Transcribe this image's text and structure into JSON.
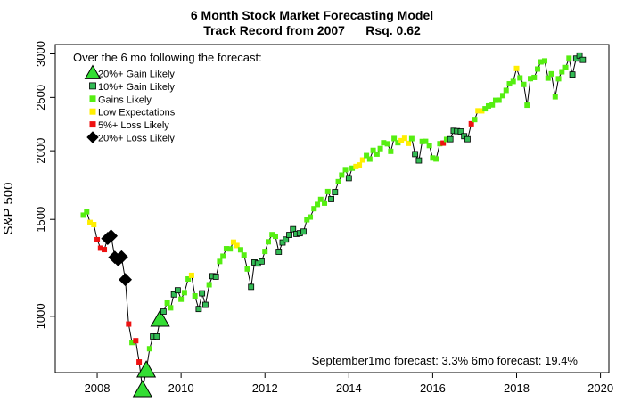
{
  "chart_data": {
    "type": "scatter",
    "title": "6 Month Stock Market Forecasting Model",
    "subtitle": "Track Record from 2007      Rsq. 0.62",
    "ylabel": "S&P 500",
    "xlabel": "",
    "x_range": [
      2007.0,
      2020.2
    ],
    "y_range": [
      790,
      3120
    ],
    "y_scale": "log",
    "x_ticks": [
      2008,
      2010,
      2012,
      2014,
      2016,
      2018,
      2020
    ],
    "y_ticks": [
      1000,
      1500,
      2000,
      2500,
      3000
    ],
    "legend": {
      "title": "Over the 6 mo following the forecast:",
      "entries": [
        {
          "category": "gain20",
          "label": "20%+ Gain Likely"
        },
        {
          "category": "gain10",
          "label": "10%+ Gain Likely"
        },
        {
          "category": "gains",
          "label": "Gains Likely"
        },
        {
          "category": "low",
          "label": "Low Expectations"
        },
        {
          "category": "loss5",
          "label": "5%+  Loss Likely"
        },
        {
          "category": "loss20",
          "label": "20%+  Loss Likely"
        }
      ]
    },
    "annotation": "September1mo forecast: 3.3%  6mo forecast: 19.4%",
    "styles": {
      "gain20": {
        "shape": "triangle",
        "fill": "#33dd33",
        "stroke": "#000000"
      },
      "gain10": {
        "shape": "square",
        "fill": "#33bb55",
        "stroke": "#000000"
      },
      "gains": {
        "shape": "square",
        "fill": "#55ee11",
        "stroke": "none"
      },
      "low": {
        "shape": "square",
        "fill": "#ffee00",
        "stroke": "none"
      },
      "loss5": {
        "shape": "square",
        "fill": "#ee1111",
        "stroke": "none"
      },
      "loss20": {
        "shape": "diamond",
        "fill": "#000000",
        "stroke": "#000000"
      }
    },
    "series": [
      {
        "x": 2007.67,
        "y": 1527,
        "category": "gains"
      },
      {
        "x": 2007.75,
        "y": 1549,
        "category": "gains"
      },
      {
        "x": 2007.83,
        "y": 1481,
        "category": "low"
      },
      {
        "x": 2007.92,
        "y": 1468,
        "category": "low"
      },
      {
        "x": 2008.0,
        "y": 1378,
        "category": "loss5"
      },
      {
        "x": 2008.08,
        "y": 1330,
        "category": "loss5"
      },
      {
        "x": 2008.17,
        "y": 1322,
        "category": "loss5"
      },
      {
        "x": 2008.25,
        "y": 1385,
        "category": "loss20"
      },
      {
        "x": 2008.33,
        "y": 1400,
        "category": "loss20"
      },
      {
        "x": 2008.42,
        "y": 1280,
        "category": "loss20"
      },
      {
        "x": 2008.5,
        "y": 1267,
        "category": "loss20"
      },
      {
        "x": 2008.58,
        "y": 1282,
        "category": "loss20"
      },
      {
        "x": 2008.67,
        "y": 1166,
        "category": "loss20"
      },
      {
        "x": 2008.75,
        "y": 968,
        "category": "loss5"
      },
      {
        "x": 2008.83,
        "y": 896,
        "category": "gains"
      },
      {
        "x": 2008.92,
        "y": 903,
        "category": "loss5"
      },
      {
        "x": 2009.0,
        "y": 826,
        "category": "loss5"
      },
      {
        "x": 2009.08,
        "y": 735,
        "category": "gain20"
      },
      {
        "x": 2009.17,
        "y": 798,
        "category": "gain20"
      },
      {
        "x": 2009.25,
        "y": 873,
        "category": "gains"
      },
      {
        "x": 2009.33,
        "y": 919,
        "category": "gain10"
      },
      {
        "x": 2009.42,
        "y": 919,
        "category": "gain10"
      },
      {
        "x": 2009.5,
        "y": 987,
        "category": "gain20"
      },
      {
        "x": 2009.58,
        "y": 1020,
        "category": "gain10"
      },
      {
        "x": 2009.67,
        "y": 1057,
        "category": "gains"
      },
      {
        "x": 2009.75,
        "y": 1036,
        "category": "gains"
      },
      {
        "x": 2009.83,
        "y": 1096,
        "category": "gain10"
      },
      {
        "x": 2009.92,
        "y": 1115,
        "category": "gain10"
      },
      {
        "x": 2010.0,
        "y": 1074,
        "category": "gains"
      },
      {
        "x": 2010.08,
        "y": 1104,
        "category": "gains"
      },
      {
        "x": 2010.17,
        "y": 1169,
        "category": "gains"
      },
      {
        "x": 2010.25,
        "y": 1187,
        "category": "low"
      },
      {
        "x": 2010.33,
        "y": 1089,
        "category": "gains"
      },
      {
        "x": 2010.42,
        "y": 1031,
        "category": "gain10"
      },
      {
        "x": 2010.5,
        "y": 1101,
        "category": "gain10"
      },
      {
        "x": 2010.58,
        "y": 1049,
        "category": "gain10"
      },
      {
        "x": 2010.67,
        "y": 1141,
        "category": "gains"
      },
      {
        "x": 2010.75,
        "y": 1183,
        "category": "gain10"
      },
      {
        "x": 2010.83,
        "y": 1180,
        "category": "gain10"
      },
      {
        "x": 2010.92,
        "y": 1258,
        "category": "gains"
      },
      {
        "x": 2011.0,
        "y": 1286,
        "category": "gains"
      },
      {
        "x": 2011.08,
        "y": 1327,
        "category": "gains"
      },
      {
        "x": 2011.17,
        "y": 1326,
        "category": "gains"
      },
      {
        "x": 2011.25,
        "y": 1364,
        "category": "low"
      },
      {
        "x": 2011.33,
        "y": 1345,
        "category": "low"
      },
      {
        "x": 2011.42,
        "y": 1321,
        "category": "gains"
      },
      {
        "x": 2011.5,
        "y": 1292,
        "category": "gains"
      },
      {
        "x": 2011.58,
        "y": 1219,
        "category": "gains"
      },
      {
        "x": 2011.67,
        "y": 1131,
        "category": "gain10"
      },
      {
        "x": 2011.75,
        "y": 1253,
        "category": "gain10"
      },
      {
        "x": 2011.83,
        "y": 1247,
        "category": "gain10"
      },
      {
        "x": 2011.92,
        "y": 1258,
        "category": "gain10"
      },
      {
        "x": 2012.0,
        "y": 1312,
        "category": "gains"
      },
      {
        "x": 2012.08,
        "y": 1366,
        "category": "gains"
      },
      {
        "x": 2012.17,
        "y": 1408,
        "category": "gains"
      },
      {
        "x": 2012.25,
        "y": 1398,
        "category": "gains"
      },
      {
        "x": 2012.33,
        "y": 1310,
        "category": "gain10"
      },
      {
        "x": 2012.42,
        "y": 1362,
        "category": "gain10"
      },
      {
        "x": 2012.5,
        "y": 1379,
        "category": "gain10"
      },
      {
        "x": 2012.58,
        "y": 1406,
        "category": "gain10"
      },
      {
        "x": 2012.67,
        "y": 1440,
        "category": "gain10"
      },
      {
        "x": 2012.75,
        "y": 1412,
        "category": "gain10"
      },
      {
        "x": 2012.83,
        "y": 1416,
        "category": "gain10"
      },
      {
        "x": 2012.92,
        "y": 1426,
        "category": "gain10"
      },
      {
        "x": 2013.0,
        "y": 1498,
        "category": "gains"
      },
      {
        "x": 2013.08,
        "y": 1515,
        "category": "gains"
      },
      {
        "x": 2013.17,
        "y": 1569,
        "category": "gains"
      },
      {
        "x": 2013.25,
        "y": 1597,
        "category": "gains"
      },
      {
        "x": 2013.33,
        "y": 1631,
        "category": "gains"
      },
      {
        "x": 2013.42,
        "y": 1606,
        "category": "gains"
      },
      {
        "x": 2013.5,
        "y": 1686,
        "category": "gains"
      },
      {
        "x": 2013.58,
        "y": 1633,
        "category": "gain10"
      },
      {
        "x": 2013.67,
        "y": 1682,
        "category": "gain10"
      },
      {
        "x": 2013.75,
        "y": 1757,
        "category": "gains"
      },
      {
        "x": 2013.83,
        "y": 1806,
        "category": "gains"
      },
      {
        "x": 2013.92,
        "y": 1848,
        "category": "gains"
      },
      {
        "x": 2014.0,
        "y": 1783,
        "category": "gain10"
      },
      {
        "x": 2014.08,
        "y": 1859,
        "category": "gains"
      },
      {
        "x": 2014.17,
        "y": 1872,
        "category": "low"
      },
      {
        "x": 2014.25,
        "y": 1884,
        "category": "low"
      },
      {
        "x": 2014.33,
        "y": 1924,
        "category": "low"
      },
      {
        "x": 2014.42,
        "y": 1960,
        "category": "gains"
      },
      {
        "x": 2014.5,
        "y": 1931,
        "category": "gains"
      },
      {
        "x": 2014.58,
        "y": 2003,
        "category": "gains"
      },
      {
        "x": 2014.67,
        "y": 1972,
        "category": "gains"
      },
      {
        "x": 2014.75,
        "y": 2018,
        "category": "gains"
      },
      {
        "x": 2014.83,
        "y": 2068,
        "category": "gains"
      },
      {
        "x": 2014.92,
        "y": 2059,
        "category": "gains"
      },
      {
        "x": 2015.0,
        "y": 1995,
        "category": "gains"
      },
      {
        "x": 2015.08,
        "y": 2105,
        "category": "gains"
      },
      {
        "x": 2015.17,
        "y": 2068,
        "category": "gains"
      },
      {
        "x": 2015.25,
        "y": 2086,
        "category": "low"
      },
      {
        "x": 2015.33,
        "y": 2107,
        "category": "low"
      },
      {
        "x": 2015.42,
        "y": 2063,
        "category": "low"
      },
      {
        "x": 2015.5,
        "y": 2104,
        "category": "gains"
      },
      {
        "x": 2015.58,
        "y": 1972,
        "category": "gain10"
      },
      {
        "x": 2015.67,
        "y": 1920,
        "category": "gain10"
      },
      {
        "x": 2015.75,
        "y": 2079,
        "category": "gains"
      },
      {
        "x": 2015.83,
        "y": 2080,
        "category": "gains"
      },
      {
        "x": 2015.92,
        "y": 2044,
        "category": "gains"
      },
      {
        "x": 2016.0,
        "y": 1940,
        "category": "gains"
      },
      {
        "x": 2016.08,
        "y": 1932,
        "category": "gains"
      },
      {
        "x": 2016.17,
        "y": 2060,
        "category": "gains"
      },
      {
        "x": 2016.25,
        "y": 2065,
        "category": "loss5"
      },
      {
        "x": 2016.33,
        "y": 2097,
        "category": "gains"
      },
      {
        "x": 2016.42,
        "y": 2099,
        "category": "gain10"
      },
      {
        "x": 2016.5,
        "y": 2174,
        "category": "gain10"
      },
      {
        "x": 2016.58,
        "y": 2171,
        "category": "gain10"
      },
      {
        "x": 2016.67,
        "y": 2168,
        "category": "gain10"
      },
      {
        "x": 2016.75,
        "y": 2126,
        "category": "gain10"
      },
      {
        "x": 2016.83,
        "y": 2099,
        "category": "gain10"
      },
      {
        "x": 2016.92,
        "y": 2239,
        "category": "loss5"
      },
      {
        "x": 2017.0,
        "y": 2279,
        "category": "gains"
      },
      {
        "x": 2017.08,
        "y": 2364,
        "category": "low"
      },
      {
        "x": 2017.17,
        "y": 2363,
        "category": "low"
      },
      {
        "x": 2017.25,
        "y": 2384,
        "category": "gains"
      },
      {
        "x": 2017.33,
        "y": 2412,
        "category": "gains"
      },
      {
        "x": 2017.42,
        "y": 2423,
        "category": "gains"
      },
      {
        "x": 2017.5,
        "y": 2470,
        "category": "gains"
      },
      {
        "x": 2017.58,
        "y": 2471,
        "category": "gains"
      },
      {
        "x": 2017.67,
        "y": 2519,
        "category": "gains"
      },
      {
        "x": 2017.75,
        "y": 2575,
        "category": "gains"
      },
      {
        "x": 2017.83,
        "y": 2647,
        "category": "gains"
      },
      {
        "x": 2017.92,
        "y": 2673,
        "category": "gains"
      },
      {
        "x": 2018.0,
        "y": 2823,
        "category": "low"
      },
      {
        "x": 2018.08,
        "y": 2713,
        "category": "gains"
      },
      {
        "x": 2018.17,
        "y": 2640,
        "category": "gains"
      },
      {
        "x": 2018.25,
        "y": 2420,
        "category": "gains"
      },
      {
        "x": 2018.33,
        "y": 2705,
        "category": "gains"
      },
      {
        "x": 2018.42,
        "y": 2718,
        "category": "gains"
      },
      {
        "x": 2018.5,
        "y": 2816,
        "category": "gains"
      },
      {
        "x": 2018.58,
        "y": 2901,
        "category": "gains"
      },
      {
        "x": 2018.67,
        "y": 2913,
        "category": "gains"
      },
      {
        "x": 2018.75,
        "y": 2711,
        "category": "gains"
      },
      {
        "x": 2018.83,
        "y": 2760,
        "category": "gains"
      },
      {
        "x": 2018.92,
        "y": 2507,
        "category": "gains"
      },
      {
        "x": 2019.0,
        "y": 2704,
        "category": "gains"
      },
      {
        "x": 2019.08,
        "y": 2784,
        "category": "gains"
      },
      {
        "x": 2019.17,
        "y": 2834,
        "category": "gains"
      },
      {
        "x": 2019.25,
        "y": 2946,
        "category": "gains"
      },
      {
        "x": 2019.33,
        "y": 2752,
        "category": "gain10"
      },
      {
        "x": 2019.42,
        "y": 2942,
        "category": "gain10"
      },
      {
        "x": 2019.5,
        "y": 2980,
        "category": "gain10"
      },
      {
        "x": 2019.58,
        "y": 2926,
        "category": "gain10"
      }
    ]
  }
}
